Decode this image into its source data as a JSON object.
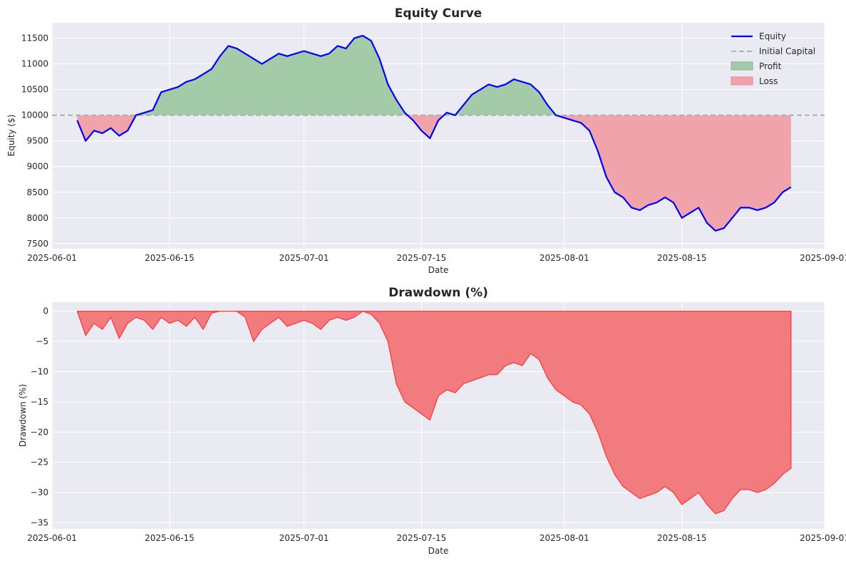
{
  "chart_data": [
    {
      "type": "line",
      "title": "Equity Curve",
      "xlabel": "Date",
      "ylabel": "Equity ($)",
      "xlim": [
        "2025-06-01",
        "2025-09-01"
      ],
      "ylim": [
        7400,
        11800
      ],
      "x_ticks": [
        "2025-06-01",
        "2025-06-15",
        "2025-07-01",
        "2025-07-15",
        "2025-08-01",
        "2025-08-15",
        "2025-09-01"
      ],
      "y_ticks": [
        7500,
        8000,
        8500,
        9000,
        9500,
        10000,
        10500,
        11000,
        11500
      ],
      "grid": true,
      "legend": "top-right",
      "baseline": 10000,
      "colors": {
        "equity": "#0000ff",
        "initial": "#aaaaaa",
        "profit": "#a3cba8",
        "loss": "#f0a3aa"
      },
      "legend_entries": [
        "Equity",
        "Initial Capital",
        "Profit",
        "Loss"
      ],
      "series": [
        {
          "name": "Equity",
          "x": [
            "2025-06-04",
            "2025-06-05",
            "2025-06-06",
            "2025-06-07",
            "2025-06-08",
            "2025-06-09",
            "2025-06-10",
            "2025-06-11",
            "2025-06-12",
            "2025-06-13",
            "2025-06-14",
            "2025-06-15",
            "2025-06-16",
            "2025-06-17",
            "2025-06-18",
            "2025-06-19",
            "2025-06-20",
            "2025-06-21",
            "2025-06-22",
            "2025-06-23",
            "2025-06-24",
            "2025-06-25",
            "2025-06-26",
            "2025-06-27",
            "2025-06-28",
            "2025-06-29",
            "2025-06-30",
            "2025-07-01",
            "2025-07-02",
            "2025-07-03",
            "2025-07-04",
            "2025-07-05",
            "2025-07-06",
            "2025-07-07",
            "2025-07-08",
            "2025-07-09",
            "2025-07-10",
            "2025-07-11",
            "2025-07-12",
            "2025-07-13",
            "2025-07-14",
            "2025-07-15",
            "2025-07-16",
            "2025-07-17",
            "2025-07-18",
            "2025-07-19",
            "2025-07-20",
            "2025-07-21",
            "2025-07-22",
            "2025-07-23",
            "2025-07-24",
            "2025-07-25",
            "2025-07-26",
            "2025-07-27",
            "2025-07-28",
            "2025-07-29",
            "2025-07-30",
            "2025-07-31",
            "2025-08-01",
            "2025-08-02",
            "2025-08-03",
            "2025-08-04",
            "2025-08-05",
            "2025-08-06",
            "2025-08-07",
            "2025-08-08",
            "2025-08-09",
            "2025-08-10",
            "2025-08-11",
            "2025-08-12",
            "2025-08-13",
            "2025-08-14",
            "2025-08-15",
            "2025-08-16",
            "2025-08-17",
            "2025-08-18",
            "2025-08-19",
            "2025-08-20",
            "2025-08-21",
            "2025-08-22",
            "2025-08-23",
            "2025-08-24",
            "2025-08-25",
            "2025-08-26",
            "2025-08-27",
            "2025-08-28"
          ],
          "values": [
            9900,
            9500,
            9700,
            9650,
            9750,
            9600,
            9700,
            10000,
            10050,
            10100,
            10450,
            10500,
            10550,
            10650,
            10700,
            10800,
            10900,
            11150,
            11350,
            11300,
            11200,
            11100,
            11000,
            11100,
            11200,
            11150,
            11200,
            11250,
            11200,
            11150,
            11200,
            11350,
            11300,
            11500,
            11550,
            11450,
            11100,
            10600,
            10300,
            10050,
            9900,
            9700,
            9550,
            9900,
            10050,
            10000,
            10200,
            10400,
            10500,
            10600,
            10550,
            10600,
            10700,
            10650,
            10600,
            10450,
            10200,
            10000,
            9950,
            9900,
            9850,
            9700,
            9300,
            8800,
            8500,
            8400,
            8200,
            8150,
            8250,
            8300,
            8400,
            8300,
            8000,
            8100,
            8200,
            7900,
            7750,
            7800,
            8000,
            8200,
            8200,
            8150,
            8200,
            8300,
            8500,
            8600
          ]
        }
      ]
    },
    {
      "type": "area",
      "title": "Drawdown (%)",
      "xlabel": "Date",
      "ylabel": "Drawdown (%)",
      "xlim": [
        "2025-06-01",
        "2025-09-01"
      ],
      "ylim": [
        -36,
        1.5
      ],
      "x_ticks": [
        "2025-06-01",
        "2025-06-15",
        "2025-07-01",
        "2025-07-15",
        "2025-08-01",
        "2025-08-15",
        "2025-09-01"
      ],
      "y_ticks": [
        0,
        -5,
        -10,
        -15,
        -20,
        -25,
        -30,
        -35
      ],
      "grid": true,
      "colors": {
        "fill": "#f27579",
        "edge": "#ff3333"
      },
      "series": [
        {
          "name": "",
          "x": [
            "2025-06-04",
            "2025-06-05",
            "2025-06-06",
            "2025-06-07",
            "2025-06-08",
            "2025-06-09",
            "2025-06-10",
            "2025-06-11",
            "2025-06-12",
            "2025-06-13",
            "2025-06-14",
            "2025-06-15",
            "2025-06-16",
            "2025-06-17",
            "2025-06-18",
            "2025-06-19",
            "2025-06-20",
            "2025-06-21",
            "2025-06-22",
            "2025-06-23",
            "2025-06-24",
            "2025-06-25",
            "2025-06-26",
            "2025-06-27",
            "2025-06-28",
            "2025-06-29",
            "2025-06-30",
            "2025-07-01",
            "2025-07-02",
            "2025-07-03",
            "2025-07-04",
            "2025-07-05",
            "2025-07-06",
            "2025-07-07",
            "2025-07-08",
            "2025-07-09",
            "2025-07-10",
            "2025-07-11",
            "2025-07-12",
            "2025-07-13",
            "2025-07-14",
            "2025-07-15",
            "2025-07-16",
            "2025-07-17",
            "2025-07-18",
            "2025-07-19",
            "2025-07-20",
            "2025-07-21",
            "2025-07-22",
            "2025-07-23",
            "2025-07-24",
            "2025-07-25",
            "2025-07-26",
            "2025-07-27",
            "2025-07-28",
            "2025-07-29",
            "2025-07-30",
            "2025-07-31",
            "2025-08-01",
            "2025-08-02",
            "2025-08-03",
            "2025-08-04",
            "2025-08-05",
            "2025-08-06",
            "2025-08-07",
            "2025-08-08",
            "2025-08-09",
            "2025-08-10",
            "2025-08-11",
            "2025-08-12",
            "2025-08-13",
            "2025-08-14",
            "2025-08-15",
            "2025-08-16",
            "2025-08-17",
            "2025-08-18",
            "2025-08-19",
            "2025-08-20",
            "2025-08-21",
            "2025-08-22",
            "2025-08-23",
            "2025-08-24",
            "2025-08-25",
            "2025-08-26",
            "2025-08-27",
            "2025-08-28"
          ],
          "values": [
            0,
            -4,
            -2,
            -3,
            -1,
            -4.5,
            -2,
            -1,
            -1.5,
            -3,
            -1,
            -2,
            -1.5,
            -2.5,
            -1,
            -3,
            -0.3,
            0,
            0,
            0,
            -1,
            -5,
            -3,
            -2,
            -1,
            -2.5,
            -2,
            -1.5,
            -2,
            -3,
            -1.5,
            -1,
            -1.5,
            -1,
            0,
            -0.5,
            -2,
            -5,
            -12,
            -15,
            -16,
            -17,
            -18,
            -14,
            -13,
            -13.5,
            -12,
            -11.5,
            -11,
            -10.5,
            -10.5,
            -9,
            -8.5,
            -9,
            -7,
            -8,
            -11,
            -13,
            -14,
            -15,
            -15.5,
            -17,
            -20,
            -24,
            -27,
            -29,
            -30,
            -31,
            -30.5,
            -30,
            -29,
            -30,
            -32,
            -31,
            -30,
            -32,
            -33.5,
            -33,
            -31,
            -29.5,
            -29.5,
            -30,
            -29.5,
            -28.5,
            -27,
            -26
          ]
        }
      ]
    }
  ]
}
